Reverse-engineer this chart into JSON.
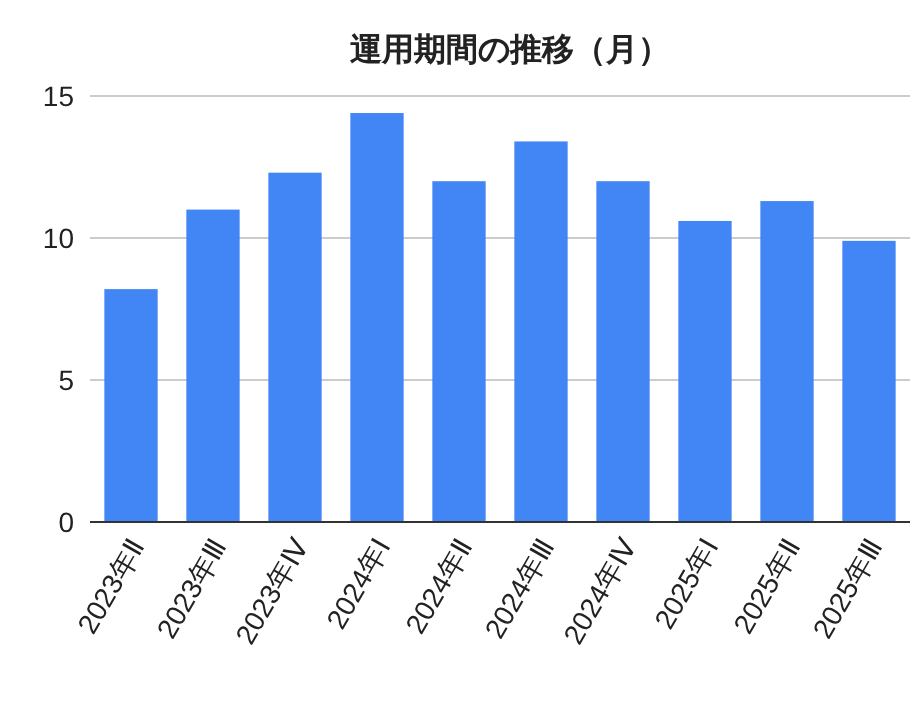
{
  "chart_data": {
    "type": "bar",
    "title": "運用期間の推移（月）",
    "categories": [
      "2023年Ⅱ",
      "2023年Ⅲ",
      "2023年Ⅳ",
      "2024年Ⅰ",
      "2024年Ⅱ",
      "2024年Ⅲ",
      "2024年Ⅳ",
      "2025年Ⅰ",
      "2025年Ⅱ",
      "2025年Ⅲ"
    ],
    "values": [
      8.2,
      11.0,
      12.3,
      14.4,
      12.0,
      13.4,
      12.0,
      10.6,
      11.3,
      9.9
    ],
    "color": "#4285f4",
    "ylim": [
      0,
      15
    ],
    "yticks": [
      0,
      5,
      10,
      15
    ],
    "grid": "y"
  }
}
